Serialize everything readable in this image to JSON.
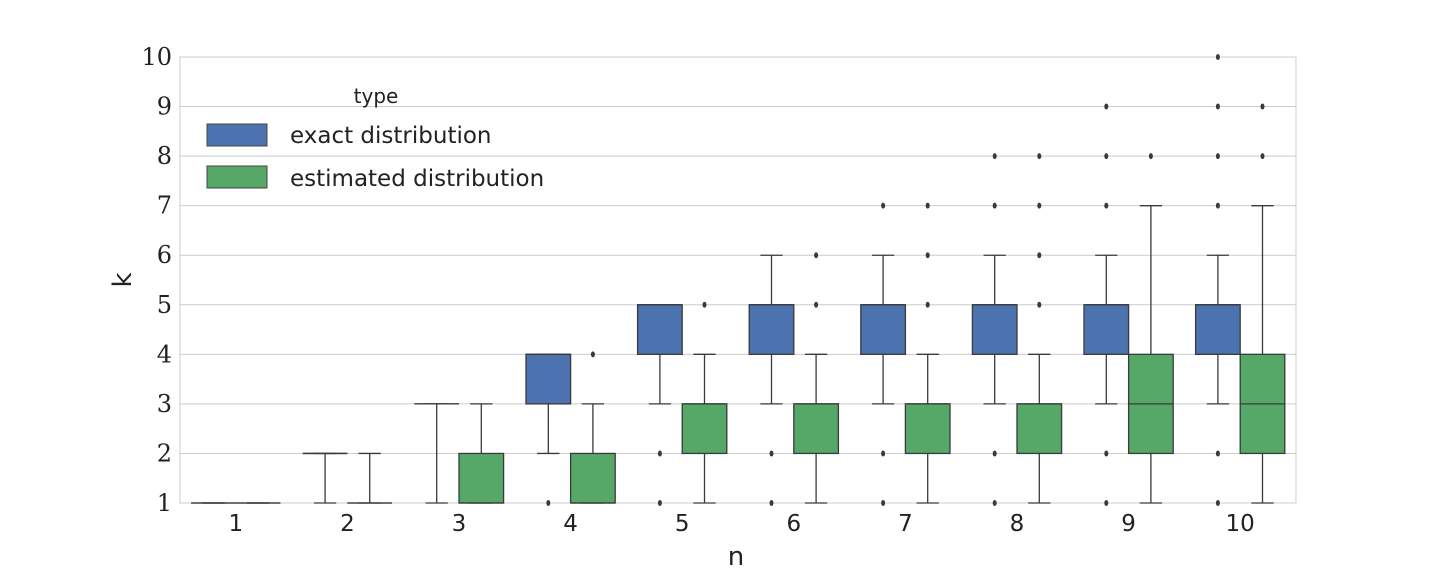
{
  "chart_data": {
    "type": "box",
    "xlabel": "n",
    "ylabel": "k",
    "ylim": [
      1,
      10
    ],
    "yticks": [
      "1",
      "2",
      "3",
      "4",
      "5",
      "6",
      "7",
      "8",
      "9",
      "10"
    ],
    "categories": [
      "1",
      "2",
      "3",
      "4",
      "5",
      "6",
      "7",
      "8",
      "9",
      "10"
    ],
    "grid": "horizontal",
    "legend": {
      "title": "type",
      "position": "upper-left"
    },
    "series": [
      {
        "name": "exact distribution",
        "color": "#4c72b0",
        "boxes": [
          {
            "q1": 1,
            "median": 1,
            "q3": 1,
            "whislo": 1,
            "whishi": 1,
            "fliers": []
          },
          {
            "q1": 2,
            "median": 2,
            "q3": 2,
            "whislo": 1,
            "whishi": 2,
            "fliers": []
          },
          {
            "q1": 3,
            "median": 3,
            "q3": 3,
            "whislo": 1,
            "whishi": 3,
            "fliers": []
          },
          {
            "q1": 3,
            "median": 4,
            "q3": 4,
            "whislo": 2,
            "whishi": 4,
            "fliers": [
              1
            ]
          },
          {
            "q1": 4,
            "median": 5,
            "q3": 5,
            "whislo": 3,
            "whishi": 5,
            "fliers": [
              1,
              2
            ]
          },
          {
            "q1": 4,
            "median": 5,
            "q3": 5,
            "whislo": 3,
            "whishi": 6,
            "fliers": [
              1,
              2
            ]
          },
          {
            "q1": 4,
            "median": 5,
            "q3": 5,
            "whislo": 3,
            "whishi": 6,
            "fliers": [
              1,
              2,
              7
            ]
          },
          {
            "q1": 4,
            "median": 5,
            "q3": 5,
            "whislo": 3,
            "whishi": 6,
            "fliers": [
              1,
              2,
              7,
              8
            ]
          },
          {
            "q1": 4,
            "median": 5,
            "q3": 5,
            "whislo": 3,
            "whishi": 6,
            "fliers": [
              1,
              2,
              7,
              8,
              9
            ]
          },
          {
            "q1": 4,
            "median": 5,
            "q3": 5,
            "whislo": 3,
            "whishi": 6,
            "fliers": [
              1,
              2,
              7,
              8,
              9,
              10
            ]
          }
        ]
      },
      {
        "name": "estimated distribution",
        "color": "#55a868",
        "boxes": [
          {
            "q1": 1,
            "median": 1,
            "q3": 1,
            "whislo": 1,
            "whishi": 1,
            "fliers": []
          },
          {
            "q1": 1,
            "median": 1,
            "q3": 1,
            "whislo": 1,
            "whishi": 2,
            "fliers": []
          },
          {
            "q1": 1,
            "median": 1,
            "q3": 2,
            "whislo": 1,
            "whishi": 3,
            "fliers": []
          },
          {
            "q1": 1,
            "median": 1,
            "q3": 2,
            "whislo": 1,
            "whishi": 3,
            "fliers": [
              4
            ]
          },
          {
            "q1": 2,
            "median": 3,
            "q3": 3,
            "whislo": 1,
            "whishi": 4,
            "fliers": [
              5
            ]
          },
          {
            "q1": 2,
            "median": 3,
            "q3": 3,
            "whislo": 1,
            "whishi": 4,
            "fliers": [
              5,
              6
            ]
          },
          {
            "q1": 2,
            "median": 3,
            "q3": 3,
            "whislo": 1,
            "whishi": 4,
            "fliers": [
              5,
              6,
              7
            ]
          },
          {
            "q1": 2,
            "median": 3,
            "q3": 3,
            "whislo": 1,
            "whishi": 4,
            "fliers": [
              5,
              6,
              7,
              8
            ]
          },
          {
            "q1": 2,
            "median": 3,
            "q3": 4,
            "whislo": 1,
            "whishi": 7,
            "fliers": [
              8
            ]
          },
          {
            "q1": 2,
            "median": 3,
            "q3": 4,
            "whislo": 1,
            "whishi": 7,
            "fliers": [
              8,
              9
            ]
          }
        ]
      }
    ]
  }
}
